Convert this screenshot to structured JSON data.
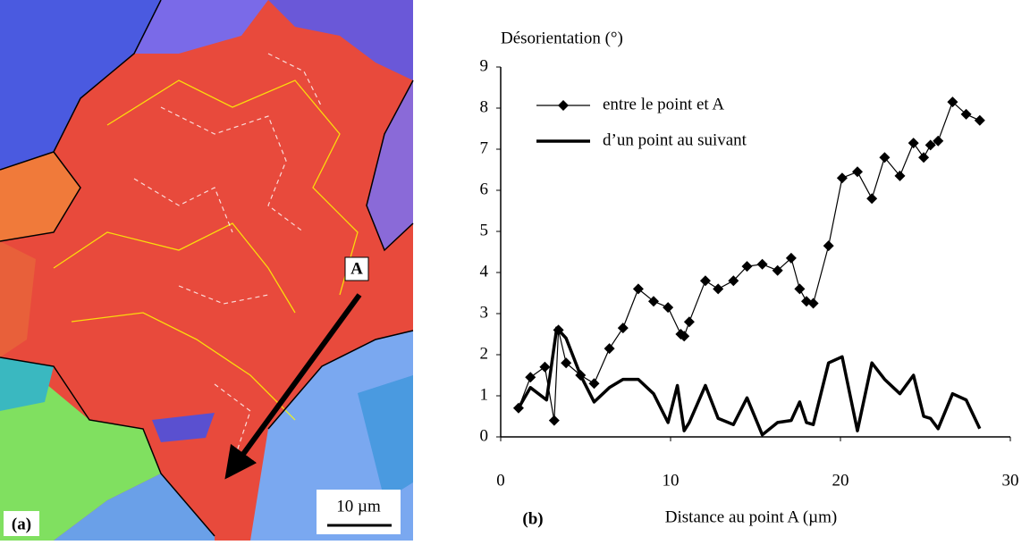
{
  "panel_a": {
    "label": "(a)",
    "point_label": "A",
    "scale_bar": "10 µm"
  },
  "chart_data": {
    "type": "line",
    "panel_label": "(b)",
    "title": "Désorientation (°)",
    "x_label": "Distance au point A (µm)",
    "xlim": [
      0,
      30
    ],
    "xticks": [
      0,
      10,
      20,
      30
    ],
    "ylim": [
      0,
      9
    ],
    "yticks": [
      0,
      1,
      2,
      3,
      4,
      5,
      6,
      7,
      8,
      9
    ],
    "grid": false,
    "legend": "top-left",
    "series": [
      {
        "name": "entre le point et A",
        "color": "#000000",
        "marker": "diamond",
        "x": [
          1.05,
          1.75,
          2.6,
          3.15,
          3.4,
          3.85,
          4.7,
          5.5,
          6.4,
          7.2,
          8.1,
          9.0,
          9.85,
          10.6,
          10.8,
          11.1,
          12.05,
          12.8,
          13.7,
          14.5,
          15.4,
          16.3,
          17.1,
          17.6,
          18.0,
          18.4,
          19.3,
          20.1,
          21.0,
          21.85,
          22.6,
          23.5,
          24.3,
          24.9,
          25.3,
          25.75,
          26.6,
          27.4,
          28.2
        ],
        "values": [
          0.7,
          1.45,
          1.7,
          0.4,
          2.6,
          1.8,
          1.5,
          1.3,
          2.15,
          2.65,
          3.6,
          3.3,
          3.15,
          2.5,
          2.45,
          2.8,
          3.8,
          3.6,
          3.8,
          4.15,
          4.2,
          4.05,
          4.35,
          3.6,
          3.3,
          3.25,
          4.65,
          6.3,
          6.45,
          5.8,
          6.8,
          6.35,
          7.15,
          6.8,
          7.1,
          7.2,
          8.15,
          7.85,
          7.7
        ]
      },
      {
        "name": "d’un point au suivant",
        "color": "#000000",
        "marker": "none",
        "x": [
          1.05,
          1.75,
          2.7,
          3.3,
          3.85,
          4.7,
          5.5,
          6.4,
          7.2,
          8.1,
          9.0,
          9.85,
          10.4,
          10.8,
          11.1,
          12.05,
          12.8,
          13.7,
          14.5,
          15.4,
          16.3,
          17.1,
          17.6,
          18.0,
          18.4,
          19.3,
          20.1,
          21.0,
          21.85,
          22.6,
          23.5,
          24.3,
          24.9,
          25.3,
          25.75,
          26.6,
          27.4,
          28.2
        ],
        "values": [
          0.7,
          1.2,
          0.9,
          2.65,
          2.4,
          1.5,
          0.85,
          1.2,
          1.4,
          1.4,
          1.05,
          0.35,
          1.25,
          0.15,
          0.35,
          1.25,
          0.45,
          0.3,
          0.95,
          0.05,
          0.35,
          0.4,
          0.85,
          0.35,
          0.3,
          1.8,
          1.95,
          0.15,
          1.8,
          1.4,
          1.05,
          1.5,
          0.5,
          0.45,
          0.2,
          1.05,
          0.9,
          0.2
        ]
      }
    ]
  }
}
